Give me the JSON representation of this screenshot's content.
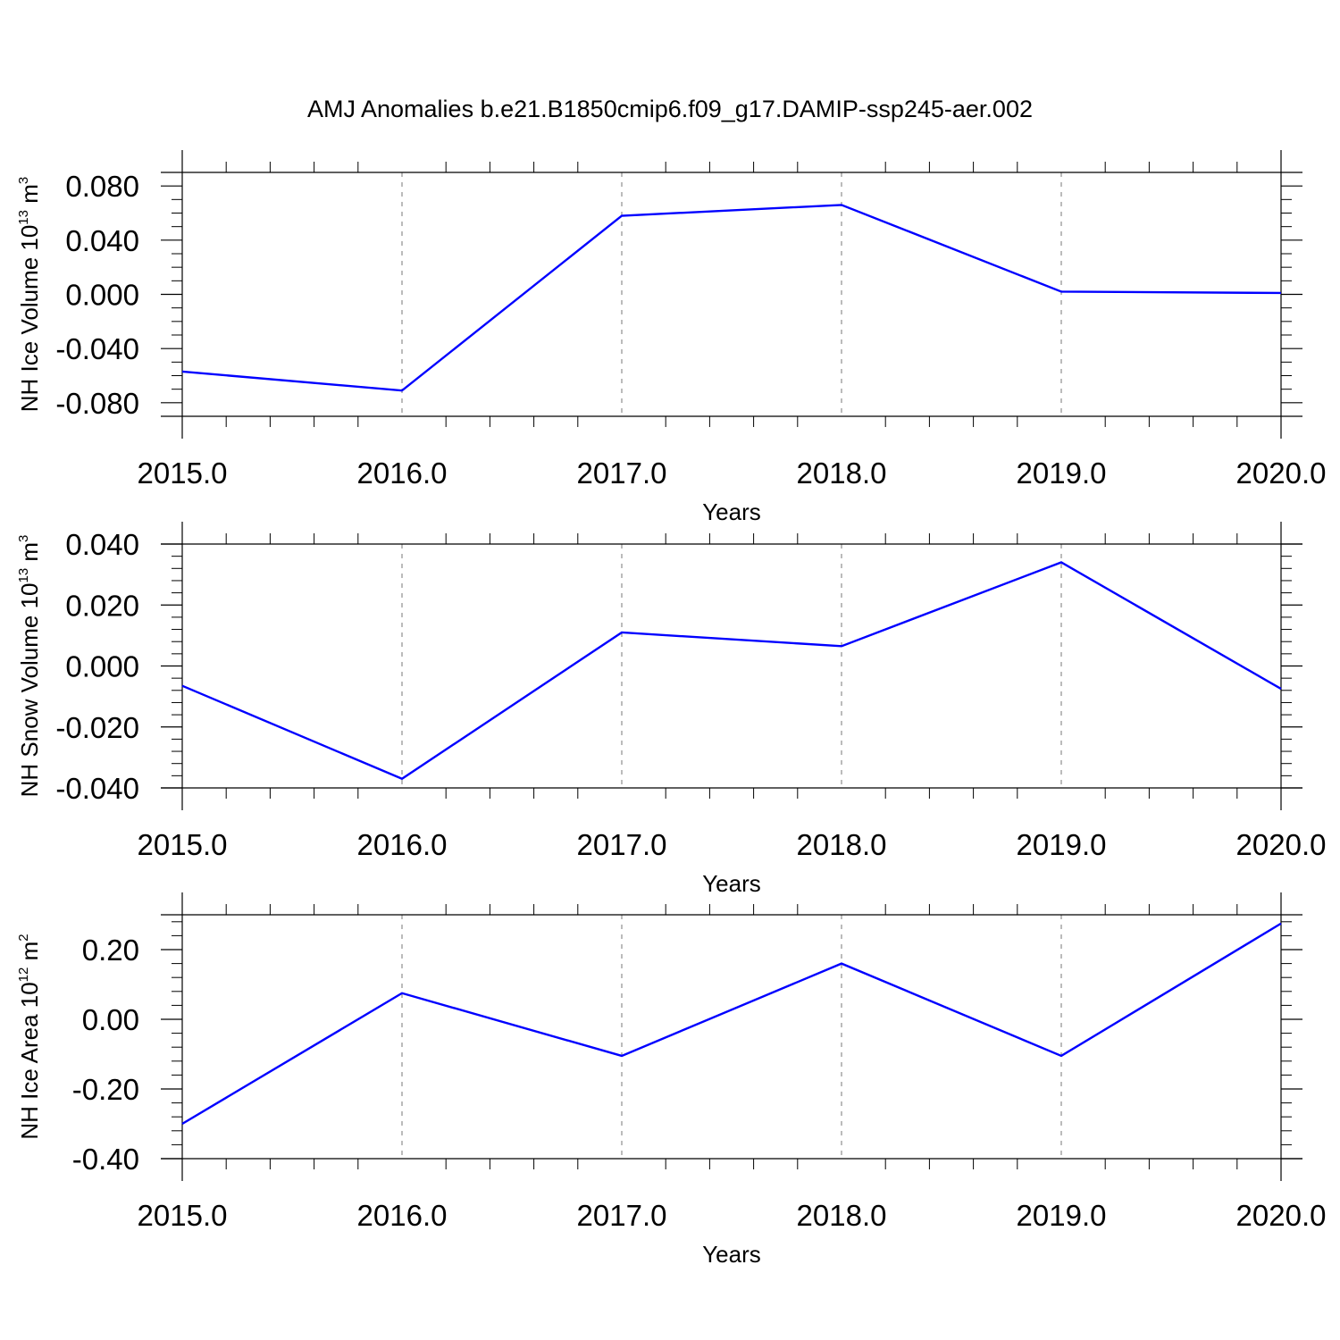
{
  "figure": {
    "title": "AMJ Anomalies b.e21.B1850cmip6.f09_g17.DAMIP-ssp245-aer.002"
  },
  "chart_data": [
    {
      "type": "line",
      "title": "",
      "xlabel": "Years",
      "ylabel": {
        "text": "NH Ice Volume 10",
        "sup": "13",
        "unit": " m",
        "unit_sup": "3"
      },
      "xlim": [
        2015,
        2020
      ],
      "ylim": [
        -0.09,
        0.09
      ],
      "x_ticks": [
        2015,
        2016,
        2017,
        2018,
        2019,
        2020
      ],
      "x_tick_labels": [
        "2015.0",
        "2016.0",
        "2017.0",
        "2018.0",
        "2019.0",
        "2020.0"
      ],
      "y_ticks": [
        0.08,
        0.04,
        0.0,
        -0.04,
        -0.08
      ],
      "y_tick_labels": [
        "0.080",
        "0.040",
        "0.000",
        "-0.040",
        "-0.080"
      ],
      "y_minor_step": 0.01,
      "grid": "vertical dashed at major x ticks",
      "series": [
        {
          "color": "#0000ff",
          "x": [
            2015,
            2016,
            2017,
            2018,
            2019,
            2020
          ],
          "y": [
            -0.057,
            -0.071,
            0.058,
            0.066,
            0.002,
            0.001
          ]
        }
      ]
    },
    {
      "type": "line",
      "title": "",
      "xlabel": "Years",
      "ylabel": {
        "text": "NH Snow Volume 10",
        "sup": "13",
        "unit": " m",
        "unit_sup": "3"
      },
      "xlim": [
        2015,
        2020
      ],
      "ylim": [
        -0.04,
        0.04
      ],
      "x_ticks": [
        2015,
        2016,
        2017,
        2018,
        2019,
        2020
      ],
      "x_tick_labels": [
        "2015.0",
        "2016.0",
        "2017.0",
        "2018.0",
        "2019.0",
        "2020.0"
      ],
      "y_ticks": [
        0.04,
        0.02,
        0.0,
        -0.02,
        -0.04
      ],
      "y_tick_labels": [
        "0.040",
        "0.020",
        "0.000",
        "-0.020",
        "-0.040"
      ],
      "y_minor_step": 0.004,
      "grid": "vertical dashed at major x ticks",
      "series": [
        {
          "color": "#0000ff",
          "x": [
            2015,
            2016,
            2017,
            2018,
            2019,
            2020
          ],
          "y": [
            -0.0065,
            -0.037,
            0.011,
            0.0065,
            0.034,
            -0.0075
          ]
        }
      ]
    },
    {
      "type": "line",
      "title": "",
      "xlabel": "Years",
      "ylabel": {
        "text": "NH Ice Area 10",
        "sup": "12",
        "unit": " m",
        "unit_sup": "2"
      },
      "xlim": [
        2015,
        2020
      ],
      "ylim": [
        -0.4,
        0.3
      ],
      "x_ticks": [
        2015,
        2016,
        2017,
        2018,
        2019,
        2020
      ],
      "x_tick_labels": [
        "2015.0",
        "2016.0",
        "2017.0",
        "2018.0",
        "2019.0",
        "2020.0"
      ],
      "y_ticks": [
        0.2,
        0.0,
        -0.2,
        -0.4
      ],
      "y_tick_labels": [
        "0.20",
        "0.00",
        "-0.20",
        "-0.40"
      ],
      "y_minor_step": 0.04,
      "grid": "vertical dashed at major x ticks",
      "series": [
        {
          "color": "#0000ff",
          "x": [
            2015,
            2016,
            2017,
            2018,
            2019,
            2020
          ],
          "y": [
            -0.3,
            0.075,
            -0.105,
            0.16,
            -0.105,
            0.275
          ]
        }
      ]
    }
  ]
}
